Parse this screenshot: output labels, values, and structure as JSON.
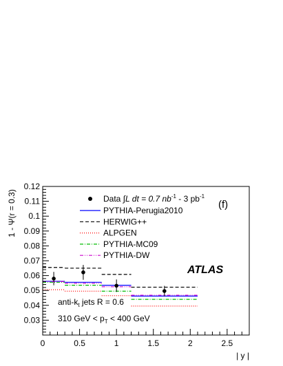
{
  "chart_data": {
    "type": "line",
    "xlabel": "| y |",
    "ylabel": "1 - Ψ(r = 0.3)",
    "xlim": [
      0,
      2.8
    ],
    "ylim": [
      0.02,
      0.12
    ],
    "x_ticks": [
      0,
      0.5,
      1,
      1.5,
      2,
      2.5
    ],
    "x_tick_labels": [
      "0",
      "0.5",
      "1",
      "1.5",
      "2",
      "2.5"
    ],
    "y_ticks": [
      0.03,
      0.04,
      0.05,
      0.06,
      0.07,
      0.08,
      0.09,
      0.1,
      0.11,
      0.12
    ],
    "y_tick_labels": [
      "0.03",
      "0.04",
      "0.05",
      "0.06",
      "0.07",
      "0.08",
      "0.09",
      "0.1",
      "0.11",
      "0.12"
    ],
    "grid": false,
    "legend_placement": "top-right",
    "panel_label": "(f)",
    "experiment_label": "ATLAS",
    "annotations": [
      "anti-k",
      "t",
      " jets R = 0.6",
      "310 GeV < p",
      "T",
      " < 400 GeV"
    ],
    "bins": [
      [
        0,
        0.3
      ],
      [
        0.3,
        0.8
      ],
      [
        0.8,
        1.2
      ],
      [
        1.2,
        2.1
      ]
    ],
    "data": {
      "name_main": "Data ",
      "name_integral": "∫L dt = 0.7 nb",
      "name_exp1": "-1",
      "name_mid": " - 3 pb",
      "name_exp2": "-1",
      "x": [
        0.15,
        0.55,
        1.0,
        1.65
      ],
      "y": [
        0.058,
        0.0622,
        0.0532,
        0.0496
      ],
      "yerr": [
        0.0045,
        0.005,
        0.0042,
        0.0035
      ],
      "xerr": [
        0.15,
        0.25,
        0.2,
        0.45
      ],
      "color": "#000000"
    },
    "series": [
      {
        "name": "PYTHIA-Perugia2010",
        "values": [
          0.0562,
          0.0555,
          0.0535,
          0.0462
        ],
        "color": "#0000ff",
        "dash": ""
      },
      {
        "name": "HERWIG++",
        "values": [
          0.0655,
          0.065,
          0.0608,
          0.0522
        ],
        "color": "#000000",
        "dash": "5,3"
      },
      {
        "name": "ALPGEN",
        "values": [
          0.0505,
          0.0495,
          0.0465,
          0.0395
        ],
        "color": "#ff0000",
        "dash": "1,2"
      },
      {
        "name": "PYTHIA-MC09",
        "values": [
          0.0555,
          0.0535,
          0.0495,
          0.044
        ],
        "color": "#00bb00",
        "dash": "5,2,1,2"
      },
      {
        "name": "PYTHIA-DW",
        "values": [
          0.056,
          0.0548,
          0.0525,
          0.0468
        ],
        "color": "#cc00cc",
        "dash": "5,2,1,2,1,2"
      }
    ]
  }
}
